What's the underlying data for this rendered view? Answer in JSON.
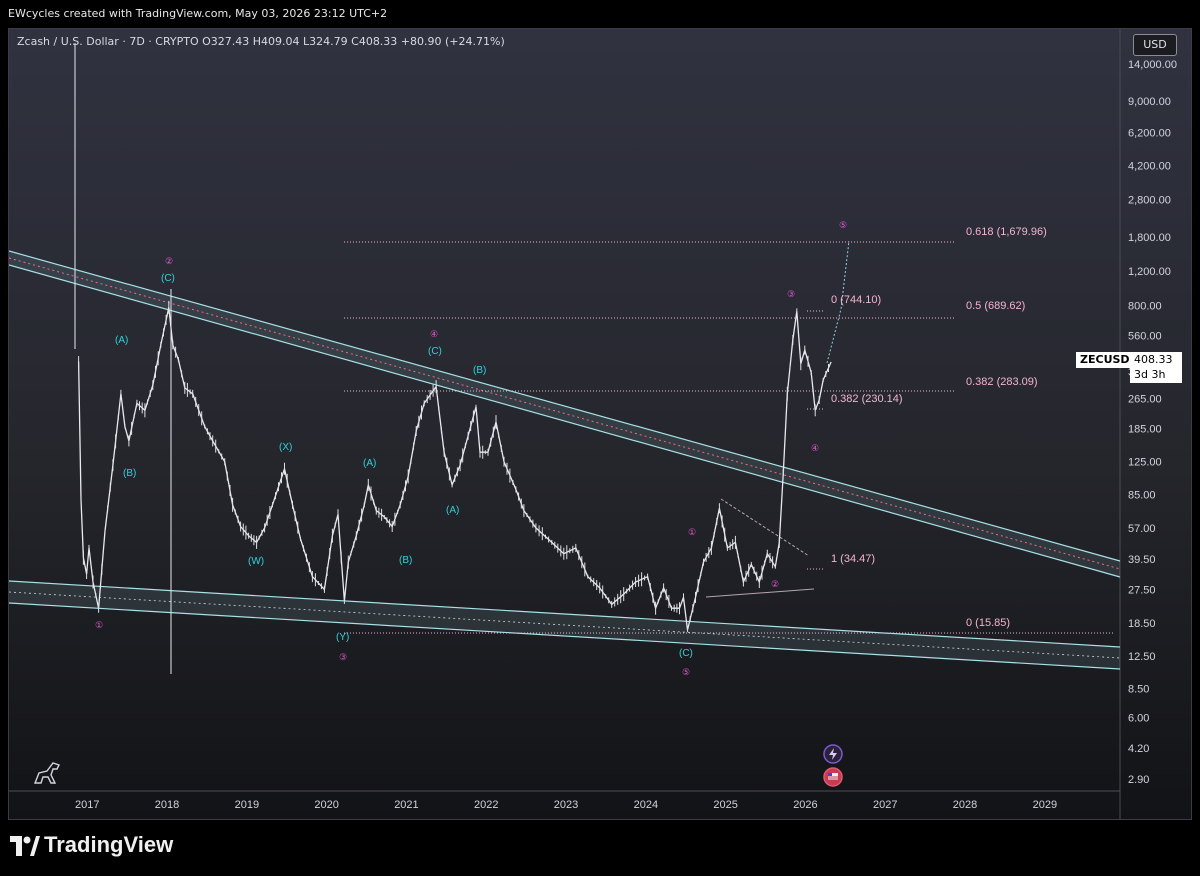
{
  "header": {
    "attribution": "EWcycles created with TradingView.com, May 03, 2026 23:12 UTC+2"
  },
  "legend": {
    "text": "Zcash / U.S. Dollar · 7D · CRYPTO  O327.43  H409.04  L324.79  C408.33  +80.90 (+24.71%)"
  },
  "currency": "USD",
  "price_tag": {
    "symbol": "ZECUSD",
    "price": "408.33",
    "countdown": "3d 3h"
  },
  "footer": {
    "brand": "TradingView"
  },
  "colors": {
    "fib": "#f3b5cf",
    "wave_cyan": "#2ed3d9",
    "wave_magenta": "#e357d4",
    "channel": "#a7e0e6"
  },
  "chart_data": {
    "type": "line",
    "scale": "log",
    "x_ticks": [
      "2017",
      "2018",
      "2019",
      "2020",
      "2021",
      "2022",
      "2023",
      "2024",
      "2025",
      "2026",
      "2027",
      "2028",
      "2029"
    ],
    "y_ticks": [
      "14,000.00",
      "9,000.00",
      "6,200.00",
      "4,200.00",
      "2,800.00",
      "1,800.00",
      "1,200.00",
      "800.00",
      "560.00",
      "365.00",
      "265.00",
      "185.00",
      "125.00",
      "85.00",
      "57.00",
      "39.50",
      "27.50",
      "18.50",
      "12.50",
      "8.50",
      "6.00",
      "4.20",
      "2.90"
    ],
    "y_tick_values": [
      14000,
      9000,
      6200,
      4200,
      2800,
      1800,
      1200,
      800,
      560,
      365,
      265,
      185,
      125,
      85,
      57,
      39.5,
      27.5,
      18.5,
      12.5,
      8.5,
      6,
      4.2,
      2.9
    ],
    "price_series": [
      [
        2016.87,
        410
      ],
      [
        2016.9,
        80
      ],
      [
        2016.93,
        40
      ],
      [
        2016.97,
        33
      ],
      [
        2017.0,
        45
      ],
      [
        2017.05,
        30
      ],
      [
        2017.12,
        22
      ],
      [
        2017.2,
        55
      ],
      [
        2017.3,
        120
      ],
      [
        2017.4,
        280
      ],
      [
        2017.45,
        190
      ],
      [
        2017.5,
        160
      ],
      [
        2017.6,
        250
      ],
      [
        2017.7,
        230
      ],
      [
        2017.8,
        310
      ],
      [
        2017.9,
        500
      ],
      [
        2018.0,
        780
      ],
      [
        2018.05,
        500
      ],
      [
        2018.12,
        420
      ],
      [
        2018.2,
        300
      ],
      [
        2018.3,
        280
      ],
      [
        2018.45,
        190
      ],
      [
        2018.55,
        160
      ],
      [
        2018.7,
        125
      ],
      [
        2018.8,
        75
      ],
      [
        2018.9,
        58
      ],
      [
        2019.0,
        52
      ],
      [
        2019.1,
        48
      ],
      [
        2019.2,
        57
      ],
      [
        2019.3,
        75
      ],
      [
        2019.45,
        115
      ],
      [
        2019.55,
        75
      ],
      [
        2019.65,
        50
      ],
      [
        2019.8,
        32
      ],
      [
        2019.95,
        27.5
      ],
      [
        2020.05,
        52
      ],
      [
        2020.12,
        67
      ],
      [
        2020.2,
        24
      ],
      [
        2020.25,
        38
      ],
      [
        2020.35,
        52
      ],
      [
        2020.45,
        75
      ],
      [
        2020.5,
        95
      ],
      [
        2020.6,
        70
      ],
      [
        2020.7,
        65
      ],
      [
        2020.8,
        58
      ],
      [
        2020.9,
        75
      ],
      [
        2021.0,
        105
      ],
      [
        2021.1,
        180
      ],
      [
        2021.2,
        250
      ],
      [
        2021.35,
        305
      ],
      [
        2021.45,
        140
      ],
      [
        2021.55,
        95
      ],
      [
        2021.65,
        120
      ],
      [
        2021.75,
        170
      ],
      [
        2021.85,
        240
      ],
      [
        2021.9,
        140
      ],
      [
        2022.0,
        140
      ],
      [
        2022.1,
        200
      ],
      [
        2022.2,
        125
      ],
      [
        2022.35,
        90
      ],
      [
        2022.45,
        70
      ],
      [
        2022.6,
        57
      ],
      [
        2022.8,
        48
      ],
      [
        2022.95,
        42
      ],
      [
        2023.1,
        45
      ],
      [
        2023.25,
        32
      ],
      [
        2023.4,
        28
      ],
      [
        2023.55,
        23
      ],
      [
        2023.7,
        26
      ],
      [
        2023.85,
        30
      ],
      [
        2024.0,
        32
      ],
      [
        2024.1,
        22
      ],
      [
        2024.2,
        28
      ],
      [
        2024.3,
        22
      ],
      [
        2024.4,
        22
      ],
      [
        2024.45,
        25
      ],
      [
        2024.5,
        17
      ],
      [
        2024.6,
        25
      ],
      [
        2024.7,
        38
      ],
      [
        2024.8,
        45
      ],
      [
        2024.9,
        72
      ],
      [
        2025.0,
        45
      ],
      [
        2025.1,
        48
      ],
      [
        2025.2,
        30
      ],
      [
        2025.3,
        37
      ],
      [
        2025.4,
        30
      ],
      [
        2025.5,
        42
      ],
      [
        2025.6,
        36
      ],
      [
        2025.65,
        48
      ],
      [
        2025.7,
        110
      ],
      [
        2025.75,
        280
      ],
      [
        2025.82,
        530
      ],
      [
        2025.87,
        744
      ],
      [
        2025.92,
        400
      ],
      [
        2025.97,
        470
      ],
      [
        2026.05,
        360
      ],
      [
        2026.1,
        230
      ],
      [
        2026.15,
        260
      ],
      [
        2026.2,
        330
      ],
      [
        2026.3,
        408
      ]
    ],
    "fib_levels": [
      {
        "label": "0.618 (1,679.96)",
        "value": 1679.96
      },
      {
        "label": "0 (744.10)",
        "value": 744.1
      },
      {
        "label": "0.5 (689.62)",
        "value": 689.62
      },
      {
        "label": "0.382 (283.09)",
        "value": 283.09
      },
      {
        "label": "0.382 (230.14)",
        "value": 230.14
      },
      {
        "label": "1 (34.47)",
        "value": 34.47
      },
      {
        "label": "0 (15.85)",
        "value": 15.85
      }
    ],
    "wave_labels": [
      {
        "text": "①",
        "color": "magenta"
      },
      {
        "text": "(A)",
        "color": "cyan"
      },
      {
        "text": "(B)",
        "color": "cyan"
      },
      {
        "text": "②",
        "color": "magenta"
      },
      {
        "text": "(C)",
        "color": "cyan"
      },
      {
        "text": "(W)",
        "color": "cyan"
      },
      {
        "text": "(X)",
        "color": "cyan"
      },
      {
        "text": "(Y)",
        "color": "cyan"
      },
      {
        "text": "③",
        "color": "magenta"
      },
      {
        "text": "(A)",
        "color": "cyan"
      },
      {
        "text": "(B)",
        "color": "cyan"
      },
      {
        "text": "④",
        "color": "magenta"
      },
      {
        "text": "(C)",
        "color": "cyan"
      },
      {
        "text": "(A)",
        "color": "cyan"
      },
      {
        "text": "(B)",
        "color": "cyan"
      },
      {
        "text": "(C)",
        "color": "cyan"
      },
      {
        "text": "⑤",
        "color": "magenta"
      },
      {
        "text": "①",
        "color": "magenta"
      },
      {
        "text": "②",
        "color": "magenta"
      },
      {
        "text": "③",
        "color": "magenta"
      },
      {
        "text": "④",
        "color": "magenta"
      },
      {
        "text": "⑤",
        "color": "magenta"
      }
    ]
  }
}
